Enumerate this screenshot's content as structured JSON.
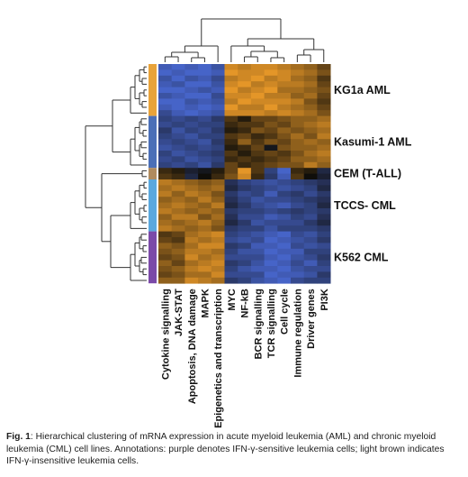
{
  "caption": {
    "lead": "Fig. 1",
    "text": ": Hierarchical clustering of mRNA expression in acute myeloid leukemia (AML) and chronic myeloid leukemia (CML) cell lines. Annotations: purple denotes IFN-γ-sensitive leukemia cells; light brown indicates IFN-γ-insensitive leukemia cells."
  },
  "colors": {
    "annot_kg1a": "#e8a33a",
    "annot_kasumi": "#4b6fb7",
    "annot_cem": "#b08b5e",
    "annot_tccs": "#5aa8de",
    "annot_k562": "#7b4aa8",
    "dendrogram": "#333333"
  },
  "chart_data": {
    "type": "heatmap",
    "groups": [
      {
        "label": "KG1a AML",
        "rows": 9,
        "annot_color": "#e8a33a"
      },
      {
        "label": "Kasumi-1 AML",
        "rows": 9,
        "annot_color": "#4b6fb7"
      },
      {
        "label": "CEM (T-ALL)",
        "rows": 2,
        "annot_color": "#b08b5e"
      },
      {
        "label": "TCCS- CML",
        "rows": 9,
        "annot_color": "#5aa8de"
      },
      {
        "label": "K562 CML",
        "rows": 9,
        "annot_color": "#7b4aa8"
      }
    ],
    "columns": [
      "Cytokine signalling",
      "JAK-STAT",
      "Apoptosis, DNA damage",
      "MAPK",
      "Epigenetics and transcription",
      "MYC",
      "NF-kB",
      "BCR signalling",
      "TCR signalling",
      "Cell cycle",
      "Immune regulation",
      "Driver genes",
      "PI3K"
    ],
    "values": [
      [
        -0.9,
        -1.1,
        -0.9,
        -1.0,
        -0.8,
        0.9,
        0.8,
        0.9,
        0.9,
        0.8,
        0.7,
        0.6,
        0.4
      ],
      [
        -1.0,
        -0.9,
        -1.0,
        -1.1,
        -0.9,
        1.0,
        0.9,
        0.9,
        1.0,
        0.9,
        0.8,
        0.7,
        0.5
      ],
      [
        -0.8,
        -1.0,
        -0.8,
        -0.9,
        -0.7,
        0.8,
        0.9,
        1.0,
        0.8,
        0.9,
        0.7,
        0.6,
        0.3
      ],
      [
        -0.9,
        -0.8,
        -1.0,
        -1.0,
        -0.8,
        0.9,
        1.0,
        0.8,
        0.9,
        0.8,
        0.8,
        0.7,
        0.4
      ],
      [
        -1.1,
        -1.0,
        -0.9,
        -0.8,
        -0.9,
        1.0,
        0.8,
        0.9,
        1.0,
        0.7,
        0.7,
        0.6,
        0.5
      ],
      [
        -0.8,
        -0.9,
        -1.1,
        -1.0,
        -0.7,
        0.9,
        0.9,
        1.0,
        0.8,
        0.8,
        0.6,
        0.7,
        0.4
      ],
      [
        -1.0,
        -1.1,
        -0.8,
        -0.9,
        -0.8,
        0.8,
        1.0,
        0.9,
        0.9,
        0.9,
        0.8,
        0.5,
        0.3
      ],
      [
        -0.9,
        -1.0,
        -0.9,
        -1.1,
        -0.9,
        1.0,
        0.8,
        0.8,
        1.0,
        0.8,
        0.7,
        0.6,
        0.4
      ],
      [
        -0.7,
        -0.9,
        -1.0,
        -0.9,
        -0.8,
        0.9,
        0.9,
        0.9,
        0.8,
        0.9,
        0.8,
        0.7,
        0.5
      ],
      [
        -0.6,
        -0.7,
        -0.6,
        -0.7,
        -0.5,
        0.3,
        0.1,
        0.4,
        0.4,
        0.5,
        0.6,
        0.6,
        0.7
      ],
      [
        -0.7,
        -0.6,
        -0.7,
        -0.6,
        -0.6,
        0.2,
        0.3,
        0.3,
        0.5,
        0.4,
        0.6,
        0.7,
        0.8
      ],
      [
        -0.5,
        -0.8,
        -0.6,
        -0.7,
        -0.5,
        0.1,
        0.2,
        0.5,
        0.4,
        0.6,
        0.5,
        0.6,
        0.7
      ],
      [
        -0.6,
        -0.7,
        -0.8,
        -0.6,
        -0.6,
        0.3,
        0.4,
        0.2,
        0.3,
        0.5,
        0.7,
        0.5,
        0.8
      ],
      [
        -0.7,
        -0.6,
        -0.7,
        -0.8,
        -0.5,
        0.2,
        0.6,
        0.3,
        0.5,
        0.4,
        0.6,
        0.7,
        0.6
      ],
      [
        -0.8,
        -0.7,
        -0.6,
        -0.7,
        -0.6,
        0.1,
        0.2,
        0.4,
        -0.1,
        0.5,
        0.6,
        0.6,
        0.7
      ],
      [
        -0.6,
        -0.8,
        -0.7,
        -0.6,
        -0.5,
        0.3,
        0.1,
        0.3,
        0.4,
        0.3,
        0.5,
        0.7,
        0.8
      ],
      [
        -0.7,
        -0.6,
        -0.8,
        -0.7,
        -0.6,
        0.2,
        0.3,
        0.2,
        0.3,
        0.4,
        0.6,
        0.6,
        0.7
      ],
      [
        -0.6,
        -0.7,
        -0.6,
        -0.8,
        -0.5,
        0.4,
        0.2,
        0.3,
        0.4,
        0.5,
        0.5,
        0.8,
        0.6
      ],
      [
        0.2,
        0.1,
        -0.2,
        -0.1,
        0.1,
        0.4,
        1.0,
        0.3,
        -0.6,
        -1.0,
        0.2,
        0.1,
        -0.3
      ],
      [
        0.3,
        0.2,
        -0.3,
        0.0,
        0.2,
        0.5,
        0.9,
        0.2,
        -0.5,
        -0.9,
        0.3,
        0.0,
        -0.2
      ],
      [
        0.8,
        0.7,
        0.6,
        0.5,
        0.6,
        -0.4,
        -0.6,
        -0.7,
        -0.8,
        -0.7,
        -0.6,
        -0.5,
        -0.4
      ],
      [
        0.7,
        0.8,
        0.7,
        0.6,
        0.7,
        -0.3,
        -0.5,
        -0.6,
        -0.7,
        -0.8,
        -0.7,
        -0.6,
        -0.3
      ],
      [
        0.8,
        0.6,
        0.8,
        0.7,
        0.5,
        -0.5,
        -0.7,
        -0.6,
        -0.9,
        -0.6,
        -0.5,
        -0.7,
        -0.5
      ],
      [
        0.6,
        0.7,
        0.6,
        0.8,
        0.6,
        -0.4,
        -0.6,
        -0.8,
        -0.7,
        -0.7,
        -0.6,
        -0.5,
        -0.4
      ],
      [
        0.7,
        0.8,
        0.7,
        0.6,
        0.8,
        -0.3,
        -0.5,
        -0.7,
        -0.8,
        -0.9,
        -0.7,
        -0.6,
        -0.3
      ],
      [
        0.8,
        0.7,
        0.6,
        0.7,
        0.6,
        -0.5,
        -0.6,
        -0.6,
        -0.7,
        -0.6,
        -0.5,
        -0.6,
        -0.5
      ],
      [
        0.6,
        0.8,
        0.8,
        0.5,
        0.7,
        -0.4,
        -0.7,
        -0.7,
        -0.9,
        -0.8,
        -0.6,
        -0.7,
        -0.4
      ],
      [
        0.7,
        0.6,
        0.7,
        0.8,
        0.6,
        -0.3,
        -0.5,
        -0.8,
        -0.7,
        -0.7,
        -0.7,
        -0.5,
        -0.3
      ],
      [
        0.8,
        0.7,
        0.6,
        0.7,
        0.5,
        -0.5,
        -0.6,
        -0.6,
        -0.8,
        -0.6,
        -0.6,
        -0.6,
        -0.5
      ],
      [
        0.3,
        0.4,
        0.7,
        0.8,
        0.9,
        -0.6,
        -0.7,
        -0.8,
        -0.9,
        -1.0,
        -0.7,
        -0.8,
        -0.6
      ],
      [
        0.4,
        0.3,
        0.8,
        0.7,
        0.8,
        -0.7,
        -0.8,
        -0.7,
        -1.0,
        -0.9,
        -0.8,
        -0.7,
        -0.5
      ],
      [
        0.6,
        0.5,
        0.7,
        0.9,
        0.9,
        -0.5,
        -0.6,
        -0.9,
        -0.9,
        -1.1,
        -0.7,
        -0.8,
        -0.7
      ],
      [
        0.5,
        0.6,
        0.8,
        0.8,
        0.7,
        -0.6,
        -0.8,
        -0.8,
        -1.0,
        -0.9,
        -0.9,
        -0.6,
        -0.6
      ],
      [
        0.4,
        0.5,
        0.9,
        0.7,
        0.8,
        -0.7,
        -0.7,
        -0.7,
        -0.9,
        -1.0,
        -0.8,
        -0.7,
        -0.5
      ],
      [
        0.6,
        0.4,
        0.7,
        0.8,
        0.9,
        -0.5,
        -0.6,
        -0.8,
        -1.1,
        -0.9,
        -0.7,
        -0.9,
        -0.6
      ],
      [
        0.5,
        0.6,
        0.8,
        0.9,
        0.8,
        -0.6,
        -0.8,
        -0.9,
        -0.9,
        -1.0,
        -0.8,
        -0.7,
        -0.7
      ],
      [
        0.4,
        0.5,
        0.7,
        0.7,
        0.9,
        -0.7,
        -0.7,
        -0.7,
        -1.0,
        -0.9,
        -0.9,
        -0.8,
        -0.5
      ],
      [
        0.6,
        0.6,
        0.9,
        0.8,
        0.7,
        -0.5,
        -0.6,
        -0.8,
        -0.9,
        -1.0,
        -0.7,
        -0.6,
        -0.6
      ]
    ]
  }
}
